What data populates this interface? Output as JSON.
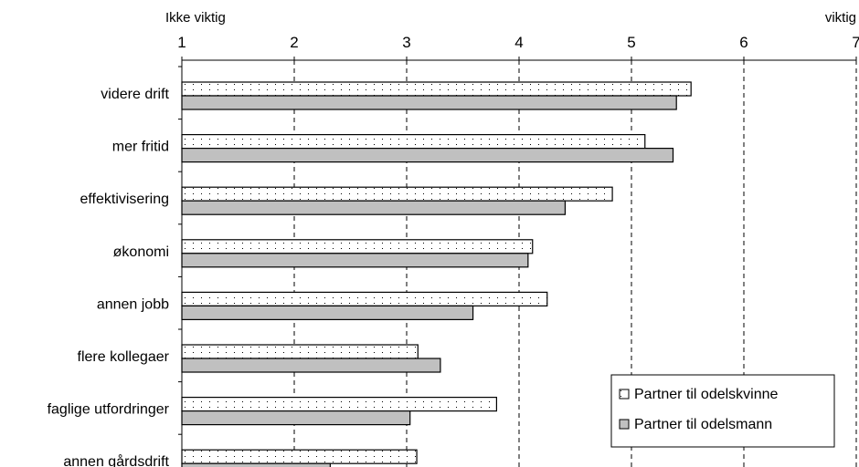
{
  "chart_data": {
    "type": "bar",
    "orientation": "horizontal",
    "axis_top_left_label": "Ikke viktig",
    "axis_top_right_label": "viktig",
    "xlim": [
      1,
      7
    ],
    "xticks": [
      "1",
      "2",
      "3",
      "4",
      "5",
      "6",
      "7"
    ],
    "grid": "vertical dashed",
    "legend_position": "bottom-right",
    "categories": [
      "videre drift",
      "mer fritid",
      "effektivisering",
      "økonomi",
      "annen jobb",
      "flere kollegaer",
      "faglige utfordringer",
      "annen gårdsdrift"
    ],
    "series": [
      {
        "name": "Partner til odelskvinne",
        "pattern": "dotted",
        "color": "#ffffff",
        "values": [
          5.53,
          5.12,
          4.83,
          4.12,
          4.25,
          3.1,
          3.8,
          3.09
        ]
      },
      {
        "name": "Partner til odelsmann",
        "pattern": "solid",
        "color": "#c0c0c0",
        "values": [
          5.4,
          5.37,
          4.41,
          4.08,
          3.59,
          3.3,
          3.03,
          2.32
        ]
      }
    ]
  }
}
